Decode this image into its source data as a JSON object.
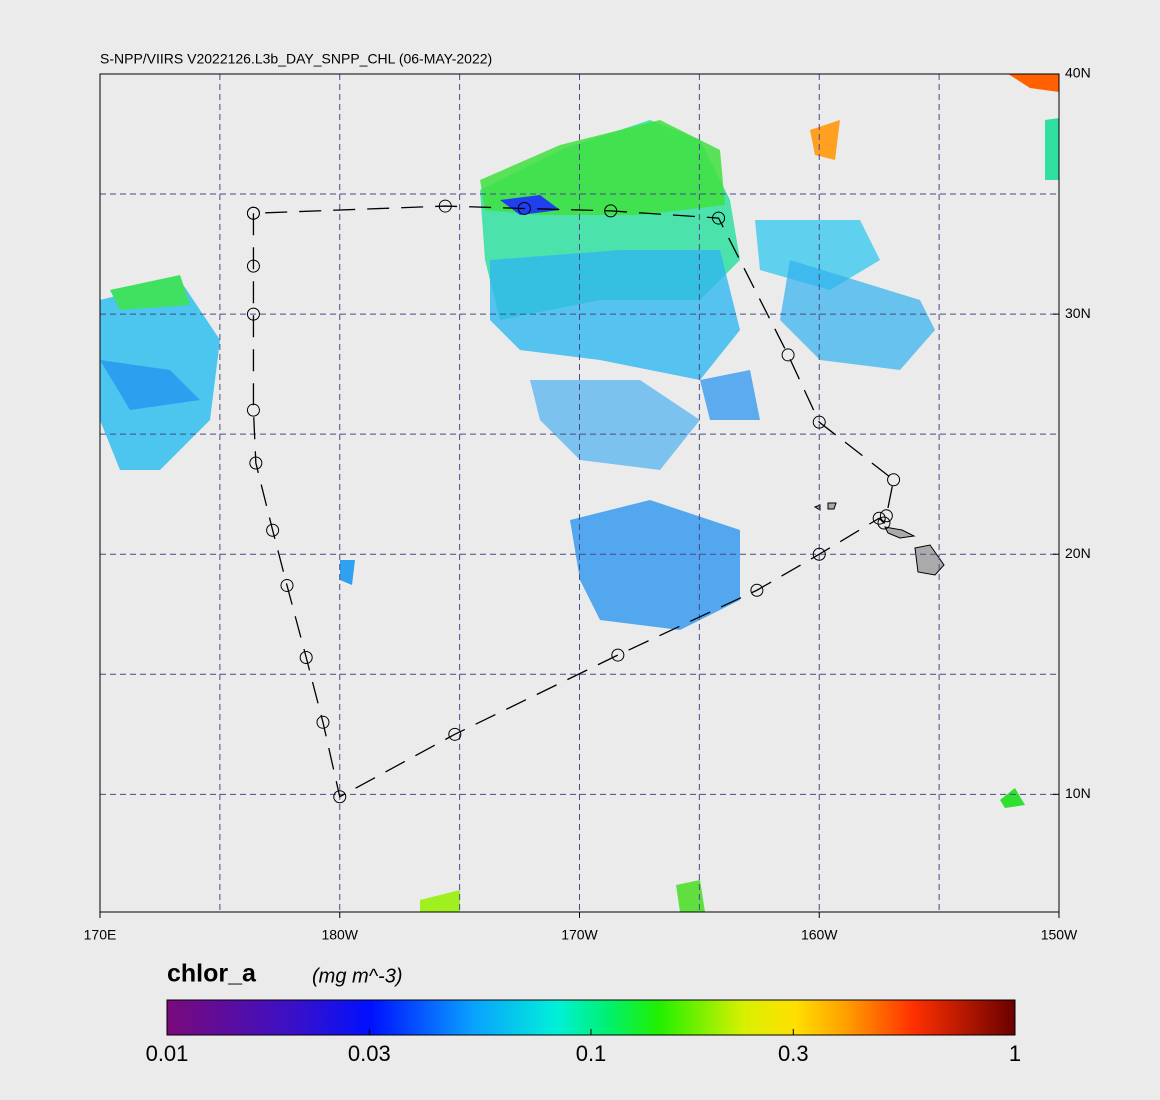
{
  "map": {
    "title": "S-NPP/VIIRS V2022126.L3b_DAY_SNPP_CHL (06-MAY-2022)",
    "xlim": [
      170,
      210
    ],
    "ylim": [
      5.1,
      40
    ],
    "xticks": [
      {
        "value": 170,
        "label": "170E"
      },
      {
        "value": 180,
        "label": "180W"
      },
      {
        "value": 190,
        "label": "170W"
      },
      {
        "value": 200,
        "label": "160W"
      },
      {
        "value": 210,
        "label": "150W"
      }
    ],
    "yticks": [
      {
        "value": 40,
        "label": "40N"
      },
      {
        "value": 30,
        "label": "30N"
      },
      {
        "value": 20,
        "label": "20N"
      },
      {
        "value": 10,
        "label": "10N"
      }
    ],
    "grid_lons": [
      175,
      180,
      185,
      190,
      195,
      200,
      205
    ],
    "grid_lats": [
      10,
      15,
      20,
      25,
      30,
      35
    ],
    "track": {
      "lon": [
        176.4,
        176.4,
        176.4,
        176.4,
        176.5,
        177.2,
        177.8,
        178.6,
        179.3,
        180.0,
        184.8,
        191.6,
        197.4,
        200.0,
        202.5,
        202.7,
        202.8,
        203.1,
        200.0,
        198.7,
        195.8,
        191.3,
        187.7,
        184.4,
        176.4
      ],
      "lat": [
        34.2,
        32.0,
        30.0,
        26.0,
        23.8,
        21.0,
        18.7,
        15.7,
        13.0,
        9.9,
        12.5,
        15.8,
        18.5,
        20.0,
        21.5,
        21.3,
        21.6,
        23.1,
        25.5,
        28.3,
        34.0,
        34.3,
        34.4,
        34.5,
        34.2
      ]
    },
    "colorbar": {
      "label": "chlor_a",
      "units": "(mg m^-3)",
      "log": true,
      "lim": [
        0.01,
        1
      ],
      "ticks": [
        0.01,
        0.03,
        0.1,
        0.3,
        1
      ]
    }
  }
}
